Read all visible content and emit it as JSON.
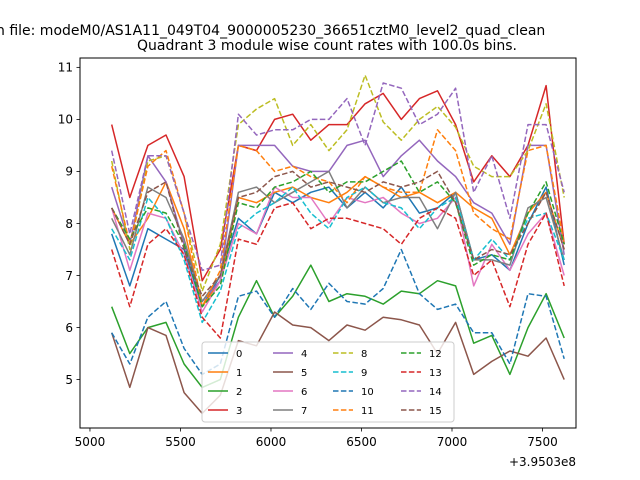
{
  "figure": {
    "suptitle": "n file: modeM0/AS1A11_049T04_9000005230_36651cztM0_level2_quad_clean",
    "title": "Quadrant 3 module wise count rates with 100.0s bins."
  },
  "chart_data": {
    "type": "line",
    "title": "Quadrant 3 module wise count rates with 100.0s bins.",
    "xlabel": "",
    "ylabel": "",
    "x_offset_label": "+3.9503e8",
    "xlim": [
      4945,
      7685
    ],
    "ylim": [
      4.07,
      11.18
    ],
    "xticks": [
      5000,
      5500,
      6000,
      6500,
      7000,
      7500
    ],
    "xtick_labels": [
      "5000",
      "5500",
      "6000",
      "6500",
      "7000",
      "7500"
    ],
    "yticks": [
      5,
      6,
      7,
      8,
      9,
      10,
      11
    ],
    "ytick_labels": [
      "5",
      "6",
      "7",
      "8",
      "9",
      "10",
      "11"
    ],
    "grid": false,
    "legend_position": "lower center",
    "legend_columns": 4,
    "x": [
      5120,
      5220,
      5320,
      5420,
      5520,
      5620,
      5720,
      5820,
      5920,
      6020,
      6120,
      6220,
      6320,
      6420,
      6520,
      6620,
      6720,
      6820,
      6920,
      7020,
      7120,
      7220,
      7320,
      7420,
      7520,
      7620
    ],
    "series": [
      {
        "name": "0",
        "color": "#1f77b4",
        "style": "solid",
        "values": [
          7.8,
          6.8,
          7.9,
          7.7,
          7.5,
          6.4,
          7.0,
          8.1,
          7.8,
          8.6,
          8.4,
          8.6,
          8.7,
          8.3,
          8.6,
          8.3,
          8.7,
          8.2,
          8.3,
          8.6,
          7.3,
          7.4,
          7.1,
          8.0,
          8.7,
          7.2
        ]
      },
      {
        "name": "1",
        "color": "#ff7f0e",
        "style": "solid",
        "values": [
          8.3,
          7.6,
          8.1,
          8.8,
          7.9,
          6.4,
          6.9,
          8.5,
          8.4,
          8.6,
          8.7,
          8.5,
          8.4,
          8.6,
          8.9,
          8.7,
          8.5,
          8.6,
          8.4,
          8.6,
          8.3,
          8.1,
          7.4,
          8.2,
          8.6,
          7.5
        ]
      },
      {
        "name": "2",
        "color": "#2ca02c",
        "style": "solid",
        "values": [
          6.4,
          5.5,
          6.0,
          6.1,
          5.3,
          4.85,
          5.0,
          6.2,
          6.9,
          6.2,
          6.6,
          7.2,
          6.5,
          6.65,
          6.6,
          6.45,
          6.7,
          6.65,
          6.9,
          6.8,
          5.7,
          5.85,
          5.1,
          6.0,
          6.65,
          5.8
        ]
      },
      {
        "name": "3",
        "color": "#d62728",
        "style": "solid",
        "values": [
          9.9,
          8.5,
          9.5,
          9.7,
          8.9,
          6.9,
          7.5,
          9.5,
          9.4,
          10.0,
          10.1,
          9.6,
          9.9,
          9.9,
          10.3,
          10.5,
          10.0,
          10.4,
          10.55,
          9.9,
          8.8,
          9.3,
          8.9,
          9.5,
          10.65,
          7.6
        ]
      },
      {
        "name": "4",
        "color": "#9467bd",
        "style": "solid",
        "values": [
          8.7,
          7.6,
          9.3,
          8.8,
          7.6,
          6.5,
          6.9,
          9.5,
          9.5,
          9.5,
          9.1,
          9.0,
          9.0,
          9.5,
          9.6,
          8.9,
          9.3,
          9.6,
          9.2,
          8.9,
          8.4,
          8.2,
          7.6,
          9.5,
          9.5,
          7.4
        ]
      },
      {
        "name": "5",
        "color": "#8c564b",
        "style": "solid",
        "values": [
          5.9,
          4.85,
          6.0,
          5.85,
          4.75,
          4.35,
          4.7,
          5.75,
          5.65,
          6.3,
          6.05,
          6.0,
          5.75,
          6.05,
          5.95,
          6.2,
          6.15,
          6.05,
          5.5,
          6.1,
          5.1,
          5.35,
          5.55,
          5.45,
          5.8,
          5.0
        ]
      },
      {
        "name": "6",
        "color": "#e377c2",
        "style": "solid",
        "values": [
          8.3,
          7.1,
          8.2,
          8.1,
          7.4,
          6.3,
          6.9,
          8.0,
          7.8,
          8.7,
          8.5,
          8.5,
          8.0,
          8.5,
          8.4,
          8.5,
          8.2,
          8.0,
          8.1,
          8.5,
          6.8,
          7.6,
          7.1,
          7.8,
          8.2,
          7.0
        ]
      },
      {
        "name": "7",
        "color": "#7f7f7f",
        "style": "solid",
        "values": [
          8.1,
          7.4,
          8.7,
          8.5,
          7.7,
          6.5,
          7.0,
          8.6,
          8.7,
          8.4,
          8.6,
          8.8,
          9.0,
          8.3,
          8.7,
          8.4,
          8.5,
          8.5,
          7.9,
          8.6,
          7.3,
          7.3,
          7.2,
          8.3,
          8.5,
          7.3
        ]
      },
      {
        "name": "8",
        "color": "#bcbd22",
        "style": "dashed",
        "values": [
          9.2,
          7.5,
          9.2,
          9.3,
          8.2,
          6.7,
          7.6,
          9.9,
          10.2,
          10.4,
          9.5,
          9.9,
          9.4,
          9.8,
          10.85,
          9.95,
          9.6,
          10.0,
          10.25,
          9.85,
          9.1,
          8.9,
          8.9,
          9.4,
          10.3,
          8.5
        ]
      },
      {
        "name": "9",
        "color": "#17becf",
        "style": "dashed",
        "values": [
          7.9,
          7.3,
          8.5,
          8.1,
          7.3,
          6.1,
          6.7,
          7.9,
          8.2,
          8.4,
          8.7,
          8.2,
          7.9,
          8.5,
          8.7,
          8.4,
          8.3,
          7.9,
          8.3,
          8.5,
          7.3,
          7.7,
          7.3,
          8.1,
          8.2,
          7.3
        ]
      },
      {
        "name": "10",
        "color": "#1f77b4",
        "style": "dashed",
        "values": [
          5.9,
          5.3,
          6.2,
          6.5,
          5.6,
          5.1,
          5.3,
          6.6,
          6.7,
          6.2,
          6.75,
          6.35,
          6.85,
          6.5,
          6.45,
          6.75,
          7.5,
          6.65,
          6.35,
          6.45,
          5.9,
          5.9,
          5.3,
          6.65,
          6.6,
          5.4
        ]
      },
      {
        "name": "11",
        "color": "#ff7f0e",
        "style": "dashed",
        "values": [
          9.1,
          7.6,
          9.1,
          9.4,
          8.2,
          6.4,
          7.1,
          9.5,
          9.4,
          9.0,
          9.1,
          8.9,
          8.8,
          8.4,
          8.9,
          8.7,
          8.6,
          8.6,
          9.8,
          9.4,
          8.2,
          7.9,
          7.7,
          9.4,
          9.5,
          7.6
        ]
      },
      {
        "name": "12",
        "color": "#2ca02c",
        "style": "dashed",
        "values": [
          8.3,
          7.7,
          8.3,
          8.2,
          7.6,
          6.4,
          6.8,
          8.4,
          8.3,
          8.7,
          8.8,
          9.0,
          8.6,
          8.8,
          8.8,
          9.0,
          9.2,
          8.6,
          8.8,
          8.4,
          7.2,
          7.4,
          7.3,
          8.2,
          8.8,
          7.6
        ]
      },
      {
        "name": "13",
        "color": "#d62728",
        "style": "dashed",
        "values": [
          7.5,
          6.4,
          7.6,
          7.9,
          7.4,
          6.2,
          5.8,
          7.7,
          7.6,
          8.3,
          8.4,
          7.9,
          8.1,
          8.1,
          8.0,
          7.9,
          7.6,
          8.1,
          8.3,
          8.1,
          7.0,
          7.3,
          6.4,
          7.6,
          8.2,
          6.8
        ]
      },
      {
        "name": "14",
        "color": "#9467bd",
        "style": "dashed",
        "values": [
          9.4,
          7.8,
          9.3,
          9.3,
          8.2,
          7.1,
          7.2,
          10.1,
          9.7,
          9.8,
          9.8,
          10.0,
          10.0,
          10.4,
          9.5,
          10.7,
          10.6,
          9.9,
          10.1,
          10.6,
          8.6,
          9.3,
          8.1,
          9.9,
          9.9,
          8.6
        ]
      },
      {
        "name": "15",
        "color": "#8c564b",
        "style": "dashed",
        "values": [
          8.3,
          7.6,
          8.6,
          8.8,
          7.5,
          6.6,
          7.0,
          8.5,
          8.6,
          8.9,
          9.0,
          8.7,
          8.8,
          8.7,
          8.6,
          8.8,
          8.7,
          8.8,
          9.0,
          8.4,
          7.3,
          7.5,
          7.4,
          8.0,
          8.6,
          7.5
        ]
      }
    ]
  }
}
